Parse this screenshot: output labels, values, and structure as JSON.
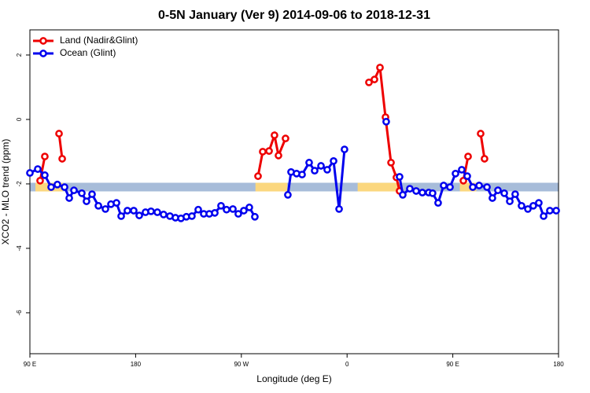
{
  "chart_data": {
    "type": "line",
    "title": "0-5N January (Ver 9)   2014-09-06 to 2018-12-31",
    "x_label": "Longitude (deg E)",
    "y_label": "XCO2 - MLO trend (ppm)",
    "xlim": [
      90,
      540
    ],
    "xticks": [
      {
        "value": 90,
        "label": "90 E"
      },
      180,
      {
        "value": 270,
        "label": "90 W"
      },
      {
        "value": 360,
        "label": "0"
      },
      {
        "value": 450,
        "label": "90 E"
      },
      {
        "value": 540,
        "label": "180"
      }
    ],
    "ylim": [
      -7.27,
      2.78
    ],
    "yticks": [
      2,
      0,
      -2,
      -4,
      -6
    ],
    "legend": "top-left",
    "mask_band": {
      "value": -2.1,
      "ocean_color": "#a7bcd9",
      "land_color": "#fbd77e",
      "land": [
        [
          94.7,
          118
        ],
        [
          282,
          309
        ],
        [
          369,
          406
        ],
        [
          456,
          470
        ]
      ]
    },
    "series": [
      {
        "name": "Land (Nadir&Glint)",
        "color": "#ee0000",
        "x": [
          98.7,
          102.7,
          null,
          114.8,
          117.5,
          null,
          284.2,
          288.2,
          293.6,
          298.2,
          301.6,
          307.6,
          null,
          378.6,
          383.3,
          388,
          392.7,
          397.4,
          402,
          404.7,
          null,
          459,
          463,
          null,
          473.7,
          477
        ],
        "values": [
          -1.9,
          -1.15,
          null,
          -0.44,
          -1.22,
          null,
          -1.76,
          -1.0,
          -0.98,
          -0.49,
          -1.12,
          -0.59,
          null,
          1.15,
          1.24,
          1.61,
          0.07,
          -1.34,
          -1.8,
          -2.22,
          null,
          -1.9,
          -1.15,
          null,
          -0.44,
          -1.22
        ]
      },
      {
        "name": "Ocean (Glint)",
        "color": "#0000ee",
        "x": [
          90,
          96.7,
          102.7,
          108.1,
          113.4,
          119.5,
          123.5,
          127.5,
          134.2,
          138.2,
          142.9,
          148.3,
          154.3,
          159,
          163.7,
          167.7,
          173,
          178.4,
          183.1,
          188.4,
          193.1,
          198.5,
          203.8,
          209.2,
          213.9,
          218.6,
          223.2,
          227.9,
          233.3,
          238,
          242.7,
          247.4,
          252.7,
          257.4,
          262.8,
          267.4,
          272.1,
          276.8,
          281.5,
          null,
          309.6,
          312.3,
          317,
          321.7,
          327.7,
          332.4,
          337.8,
          343.1,
          348.5,
          353.2,
          357.8,
          null,
          393.3,
          null,
          404.7,
          407.4,
          413.4,
          418.8,
          424.1,
          429.5,
          432.8,
          437.5,
          442.2,
          447.6,
          452.3,
          457.6,
          462.3,
          467,
          472.4,
          479.1,
          483.7,
          488.4,
          493.8,
          498.5,
          503.1,
          508.5,
          513.9,
          518.5,
          523.2,
          527.3,
          532.6,
          538
        ],
        "values": [
          -1.66,
          -1.54,
          -1.73,
          -2.1,
          -2.02,
          -2.1,
          -2.44,
          -2.2,
          -2.29,
          -2.54,
          -2.32,
          -2.68,
          -2.78,
          -2.63,
          -2.59,
          -3.0,
          -2.83,
          -2.83,
          -2.98,
          -2.88,
          -2.85,
          -2.88,
          -2.95,
          -3.0,
          -3.05,
          -3.07,
          -3.02,
          -3.0,
          -2.8,
          -2.93,
          -2.93,
          -2.9,
          -2.68,
          -2.8,
          -2.78,
          -2.93,
          -2.83,
          -2.73,
          -3.02,
          null,
          -2.34,
          -1.63,
          -1.68,
          -1.71,
          -1.34,
          -1.59,
          -1.44,
          -1.56,
          -1.29,
          -2.78,
          -0.93,
          null,
          -0.07,
          null,
          -1.78,
          -2.34,
          -2.15,
          -2.22,
          -2.27,
          -2.27,
          -2.29,
          -2.59,
          -2.05,
          -2.1,
          -1.68,
          -1.56,
          -1.76,
          -2.1,
          -2.05,
          -2.1,
          -2.44,
          -2.2,
          -2.29,
          -2.54,
          -2.32,
          -2.68,
          -2.78,
          -2.68,
          -2.59,
          -3.0,
          -2.83,
          -2.83
        ]
      }
    ]
  }
}
